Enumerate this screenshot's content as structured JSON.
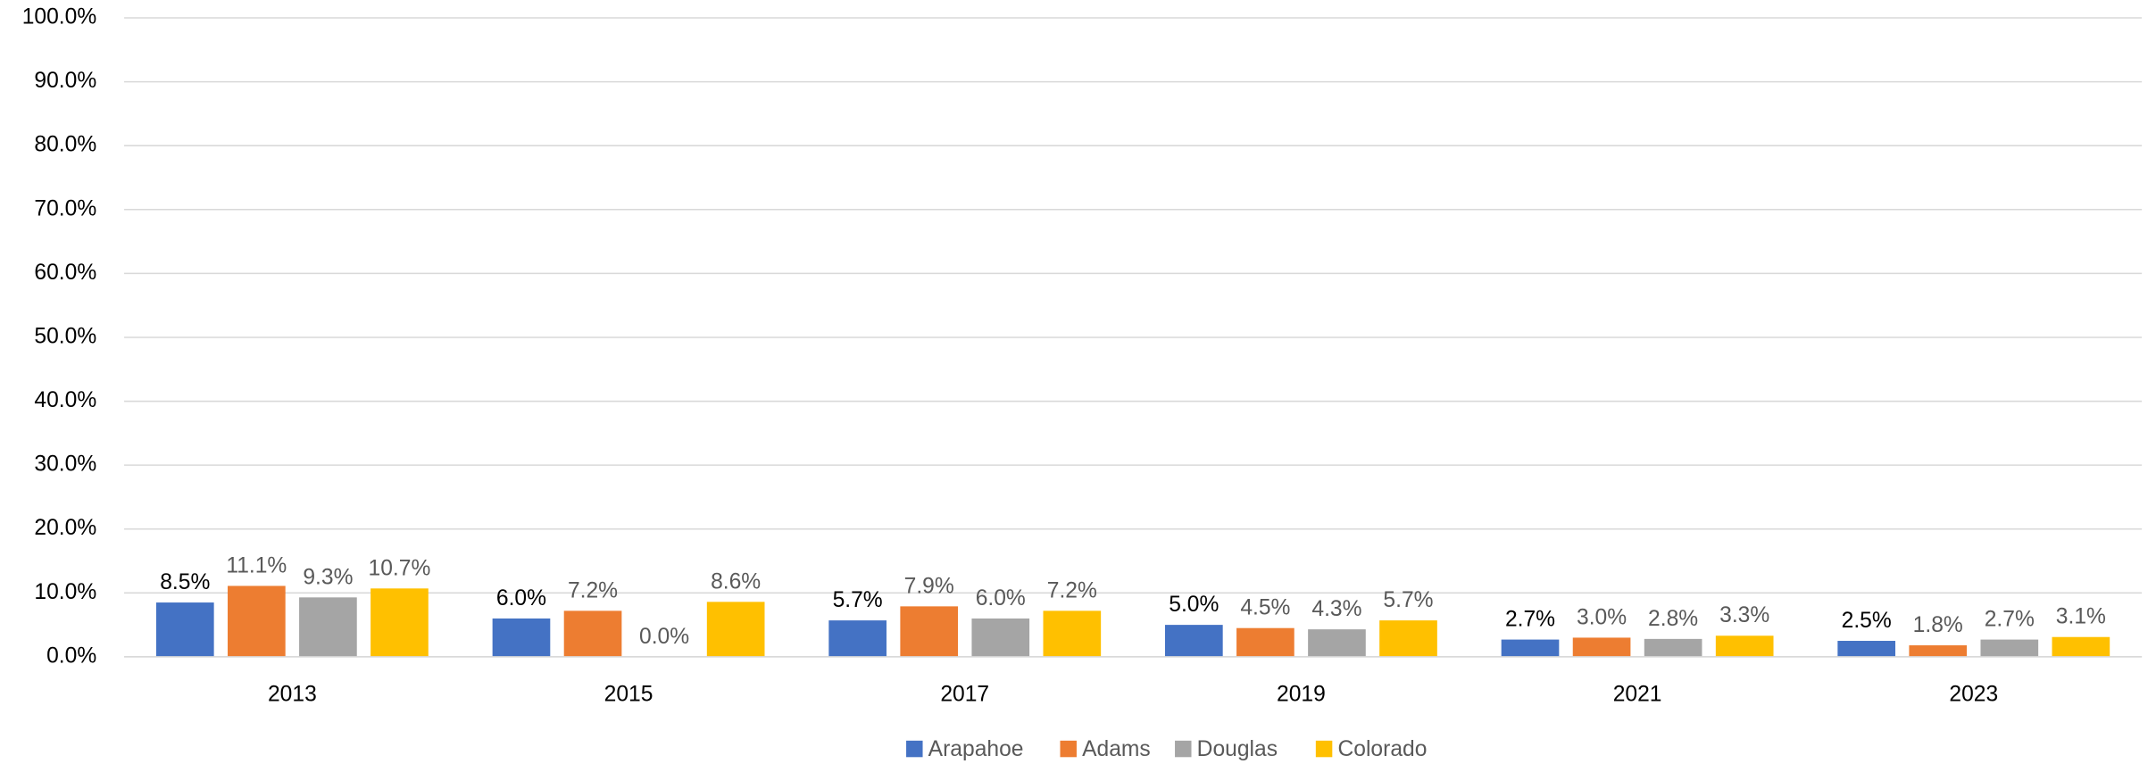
{
  "chart_data": {
    "type": "bar",
    "categories": [
      "2013",
      "2015",
      "2017",
      "2019",
      "2021",
      "2023"
    ],
    "series": [
      {
        "name": "Arapahoe",
        "color": "#4472c4",
        "values": [
          8.5,
          6.0,
          5.7,
          5.0,
          2.7,
          2.5
        ],
        "value_labels": [
          "8.5%",
          "6.0%",
          "5.7%",
          "5.0%",
          "2.7%",
          "2.5%"
        ]
      },
      {
        "name": "Adams",
        "color": "#ed7d31",
        "values": [
          11.1,
          7.2,
          7.9,
          4.5,
          3.0,
          1.8
        ],
        "value_labels": [
          "11.1%",
          "7.2%",
          "7.9%",
          "4.5%",
          "3.0%",
          "1.8%"
        ]
      },
      {
        "name": "Douglas",
        "color": "#a5a5a5",
        "values": [
          9.3,
          0.0,
          6.0,
          4.3,
          2.8,
          2.7
        ],
        "value_labels": [
          "9.3%",
          "0.0%",
          "6.0%",
          "4.3%",
          "2.8%",
          "2.7%"
        ]
      },
      {
        "name": "Colorado",
        "color": "#ffc000",
        "values": [
          10.7,
          8.6,
          7.2,
          5.7,
          3.3,
          3.1
        ],
        "value_labels": [
          "10.7%",
          "8.6%",
          "7.2%",
          "5.7%",
          "3.3%",
          "3.1%"
        ]
      }
    ],
    "ylim": [
      0,
      100
    ],
    "yticks": [
      {
        "value": 0,
        "label": "0.0%"
      },
      {
        "value": 10,
        "label": "10.0%"
      },
      {
        "value": 20,
        "label": "20.0%"
      },
      {
        "value": 30,
        "label": "30.0%"
      },
      {
        "value": 40,
        "label": "40.0%"
      },
      {
        "value": 50,
        "label": "50.0%"
      },
      {
        "value": 60,
        "label": "60.0%"
      },
      {
        "value": 70,
        "label": "70.0%"
      },
      {
        "value": 80,
        "label": "80.0%"
      },
      {
        "value": 90,
        "label": "90.0%"
      },
      {
        "value": 100,
        "label": "100.0%"
      }
    ],
    "grid": true,
    "legend": "bottom"
  }
}
